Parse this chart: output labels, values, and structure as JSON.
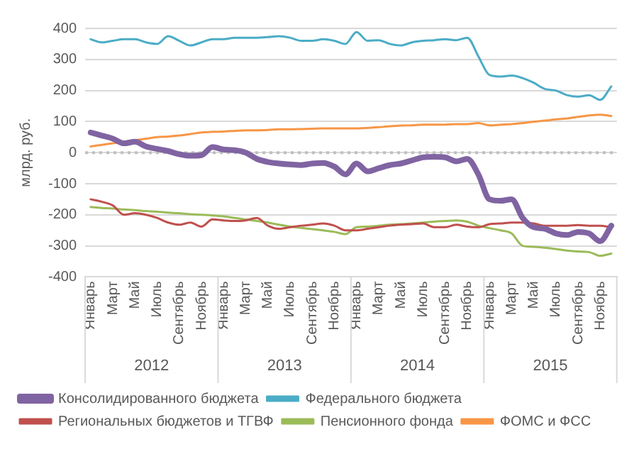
{
  "chart_data": {
    "type": "line",
    "ylabel": "млрд. руб.",
    "categories": [
      "Январь",
      null,
      "Март",
      null,
      "Май",
      null,
      "Июль",
      null,
      "Сентябрь",
      null,
      "Ноябрь",
      null,
      "Январь",
      null,
      "Март",
      null,
      "Май",
      null,
      "Июль",
      null,
      "Сентябрь",
      null,
      "Ноябрь",
      null,
      "Январь",
      null,
      "Март",
      null,
      "Май",
      null,
      "Июль",
      null,
      "Сентябрь",
      null,
      "Ноябрь",
      null,
      "Январь",
      null,
      "Март",
      null,
      "Май",
      null,
      "Июль",
      null,
      "Сентябрь",
      null,
      "Ноябрь",
      null
    ],
    "annotations": [
      "2012",
      "2013",
      "2014",
      "2015"
    ],
    "ylim": [
      -400,
      400
    ],
    "yticks": [
      -400,
      -300,
      -200,
      -100,
      0,
      100,
      200,
      300,
      400
    ],
    "grid": "y",
    "legend": "bottom",
    "marker": "none",
    "line_style": "solid",
    "ref_lines": [
      {
        "axis": "y",
        "value": 0,
        "color": "#bfbfbf",
        "line_style": "dotted"
      }
    ],
    "series": [
      {
        "name": "Консолидированного бюджета",
        "color": "#8064a2",
        "values": [
          65,
          55,
          45,
          30,
          35,
          20,
          12,
          5,
          -5,
          -10,
          -8,
          18,
          10,
          8,
          0,
          -20,
          -30,
          -35,
          -38,
          -40,
          -35,
          -33,
          -45,
          -70,
          -35,
          -60,
          -50,
          -40,
          -35,
          -25,
          -15,
          -13,
          -15,
          -28,
          -20,
          -70,
          -150,
          -155,
          -150,
          -210,
          -240,
          -245,
          -260,
          -265,
          -255,
          -260,
          -285,
          -235
        ]
      },
      {
        "name": "Федерального бюджета",
        "color": "#4bacc6",
        "values": [
          365,
          355,
          360,
          365,
          365,
          355,
          350,
          375,
          360,
          345,
          355,
          365,
          365,
          370,
          370,
          370,
          372,
          375,
          370,
          360,
          360,
          365,
          360,
          350,
          388,
          360,
          362,
          350,
          345,
          355,
          360,
          362,
          365,
          362,
          370,
          310,
          250,
          245,
          248,
          240,
          225,
          205,
          200,
          185,
          180,
          185,
          170,
          213
        ]
      },
      {
        "name": "Региональных бюджетов и ТГВФ",
        "color": "#c0504d",
        "values": [
          -150,
          -158,
          -170,
          -200,
          -195,
          -200,
          -210,
          -225,
          -232,
          -225,
          -238,
          -215,
          -218,
          -220,
          -218,
          -210,
          -235,
          -245,
          -240,
          -235,
          -232,
          -228,
          -235,
          -250,
          -250,
          -245,
          -240,
          -235,
          -232,
          -230,
          -228,
          -240,
          -240,
          -232,
          -238,
          -240,
          -230,
          -228,
          -225,
          -225,
          -228,
          -235,
          -235,
          -235,
          -233,
          -235,
          -235,
          -240
        ]
      },
      {
        "name": "Пенсионного фонда",
        "color": "#9bbb59",
        "values": [
          -175,
          -178,
          -180,
          -183,
          -185,
          -188,
          -190,
          -193,
          -195,
          -198,
          -200,
          -202,
          -205,
          -210,
          -215,
          -220,
          -225,
          -232,
          -238,
          -242,
          -246,
          -250,
          -255,
          -262,
          -240,
          -238,
          -235,
          -232,
          -230,
          -228,
          -225,
          -222,
          -220,
          -218,
          -222,
          -235,
          -243,
          -250,
          -260,
          -300,
          -303,
          -306,
          -310,
          -315,
          -318,
          -320,
          -332,
          -325
        ]
      },
      {
        "name": "ФОМС и ФСС",
        "color": "#f79646",
        "values": [
          20,
          25,
          30,
          35,
          40,
          45,
          50,
          52,
          55,
          60,
          65,
          67,
          68,
          70,
          72,
          72,
          73,
          75,
          75,
          76,
          77,
          78,
          78,
          78,
          78,
          80,
          82,
          85,
          87,
          88,
          90,
          90,
          90,
          92,
          92,
          95,
          88,
          90,
          92,
          95,
          100,
          103,
          107,
          110,
          115,
          120,
          122,
          118
        ]
      }
    ]
  }
}
